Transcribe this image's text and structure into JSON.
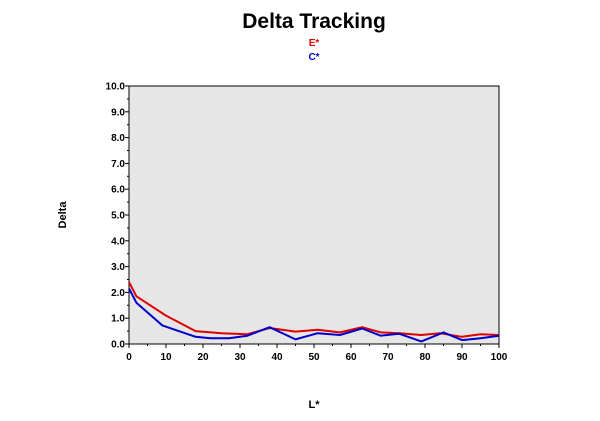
{
  "chart_data": {
    "type": "line",
    "title": "Delta Tracking",
    "xlabel": "L*",
    "ylabel": "Delta",
    "xlim": [
      0,
      100
    ],
    "ylim": [
      0,
      10
    ],
    "x_ticks": [
      0,
      10,
      20,
      30,
      40,
      50,
      60,
      70,
      80,
      90,
      100
    ],
    "y_ticks": [
      0,
      1,
      2,
      3,
      4,
      5,
      6,
      7,
      8,
      9,
      10
    ],
    "x_tick_labels": [
      "0",
      "10",
      "20",
      "30",
      "40",
      "50",
      "60",
      "70",
      "80",
      "90",
      "100"
    ],
    "y_tick_labels": [
      "0.0",
      "1.0",
      "2.0",
      "3.0",
      "4.0",
      "5.0",
      "6.0",
      "7.0",
      "8.0",
      "9.0",
      "10.0"
    ],
    "grid": false,
    "legend_position": "top-center",
    "background_color": "#e6e6e6",
    "series": [
      {
        "name": "E*",
        "color": "#dd0000",
        "x": [
          0,
          2,
          10,
          18,
          25,
          32,
          38,
          45,
          51,
          57,
          63,
          68,
          73,
          79,
          84,
          90,
          95,
          100
        ],
        "y": [
          2.4,
          1.85,
          1.1,
          0.5,
          0.42,
          0.38,
          0.62,
          0.48,
          0.55,
          0.45,
          0.65,
          0.45,
          0.42,
          0.35,
          0.42,
          0.28,
          0.38,
          0.35
        ]
      },
      {
        "name": "C*",
        "color": "#0000cc",
        "x": [
          0,
          2,
          9,
          18,
          22,
          27,
          32,
          38,
          45,
          51,
          57,
          63,
          68,
          73,
          79,
          85,
          90,
          95,
          100
        ],
        "y": [
          2.15,
          1.6,
          0.72,
          0.28,
          0.22,
          0.22,
          0.32,
          0.65,
          0.18,
          0.42,
          0.35,
          0.6,
          0.32,
          0.4,
          0.1,
          0.45,
          0.15,
          0.22,
          0.32
        ]
      }
    ]
  }
}
